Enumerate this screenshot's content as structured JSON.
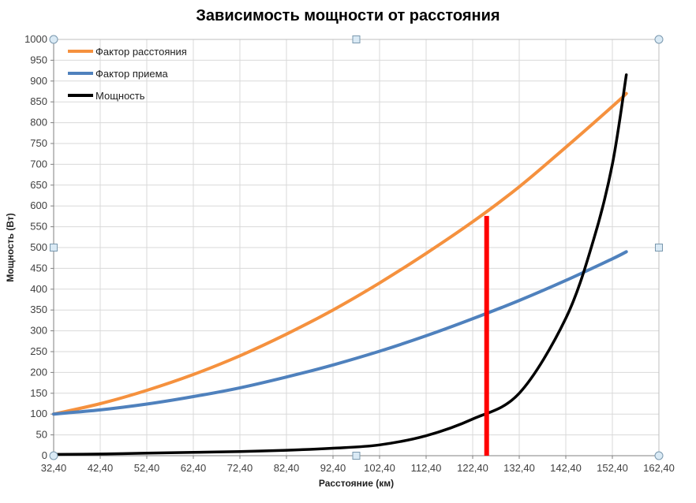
{
  "chart_data": {
    "type": "line",
    "title": "Зависимость мощности от расстояния",
    "xlabel": "Расстояние (км)",
    "ylabel": "Мощность (Вт)",
    "xlim": [
      32.4,
      162.4
    ],
    "ylim": [
      0,
      1000
    ],
    "grid": true,
    "legend_position": "top-left",
    "x_tick_labels": [
      "32,40",
      "42,40",
      "52,40",
      "62,40",
      "72,40",
      "82,40",
      "92,40",
      "102,40",
      "112,40",
      "122,40",
      "132,40",
      "142,40",
      "152,40",
      "162,40"
    ],
    "y_tick_labels": [
      "0",
      "50",
      "100",
      "150",
      "200",
      "250",
      "300",
      "350",
      "400",
      "450",
      "500",
      "550",
      "600",
      "650",
      "700",
      "750",
      "800",
      "850",
      "900",
      "950",
      "1000"
    ],
    "series": [
      {
        "name": "Фактор расстояния",
        "color": "#F5913E",
        "width": 4,
        "points": [
          [
            32.4,
            100
          ],
          [
            42.4,
            125
          ],
          [
            52.4,
            157
          ],
          [
            62.4,
            195
          ],
          [
            72.4,
            240
          ],
          [
            82.4,
            292
          ],
          [
            92.4,
            350
          ],
          [
            102.4,
            415
          ],
          [
            112.4,
            486
          ],
          [
            122.4,
            562
          ],
          [
            132.4,
            646
          ],
          [
            142.4,
            741
          ],
          [
            152.4,
            839
          ],
          [
            155.4,
            870
          ]
        ]
      },
      {
        "name": "Фактор приема",
        "color": "#4F81BD",
        "width": 4,
        "points": [
          [
            32.4,
            100
          ],
          [
            42.4,
            110
          ],
          [
            52.4,
            124
          ],
          [
            62.4,
            142
          ],
          [
            72.4,
            163
          ],
          [
            82.4,
            189
          ],
          [
            92.4,
            218
          ],
          [
            102.4,
            251
          ],
          [
            112.4,
            288
          ],
          [
            122.4,
            329
          ],
          [
            132.4,
            373
          ],
          [
            142.4,
            421
          ],
          [
            152.4,
            473
          ],
          [
            155.4,
            490
          ]
        ]
      },
      {
        "name": "Мощность",
        "color": "#000000",
        "width": 3.5,
        "points": [
          [
            32.4,
            3
          ],
          [
            42.4,
            4
          ],
          [
            52.4,
            6
          ],
          [
            62.4,
            8
          ],
          [
            72.4,
            10
          ],
          [
            82.4,
            13
          ],
          [
            92.4,
            18
          ],
          [
            102.4,
            26
          ],
          [
            112.4,
            48
          ],
          [
            122.4,
            88
          ],
          [
            132.4,
            150
          ],
          [
            142.4,
            330
          ],
          [
            148.4,
            520
          ],
          [
            152.4,
            700
          ],
          [
            155.4,
            915
          ]
        ]
      }
    ],
    "marker_line": {
      "color": "#FF0000",
      "x": 125.4,
      "y_from": 0,
      "y_to": 576,
      "width": 6
    }
  },
  "selection": {
    "handles_visible": true,
    "corner_shape": "circle",
    "edge_shape": "square",
    "fill": "#DAEAF5",
    "stroke": "#7A98AE"
  },
  "colors": {
    "gridline": "#D9D9D9",
    "plot_border": "#BFBFBF",
    "axis": "#808080",
    "tick_text": "#3F3F3F",
    "background": "#FFFFFF"
  }
}
